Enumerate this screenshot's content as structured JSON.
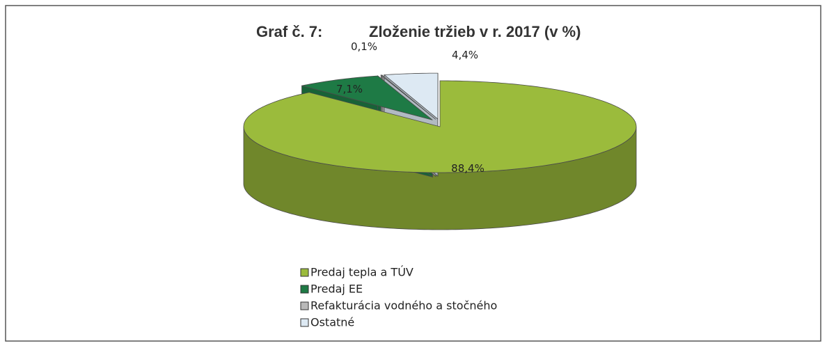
{
  "chart_data": {
    "type": "pie",
    "title_number": "Graf č. 7:",
    "title": "Zloženie tržieb v r. 2017 (v %)",
    "categories": [
      "Predaj tepla a TÚV",
      "Predaj EE",
      "Refakturácia vodného a stočného",
      "Ostatné"
    ],
    "values": [
      88.4,
      7.1,
      0.1,
      4.4
    ],
    "value_labels": [
      "88,4%",
      "7,1%",
      "0,1%",
      "4,4%"
    ],
    "colors": [
      "#9bbb3c",
      "#1e7a45",
      "#b8b8b8",
      "#dde9f3"
    ],
    "legend": "bottom"
  }
}
